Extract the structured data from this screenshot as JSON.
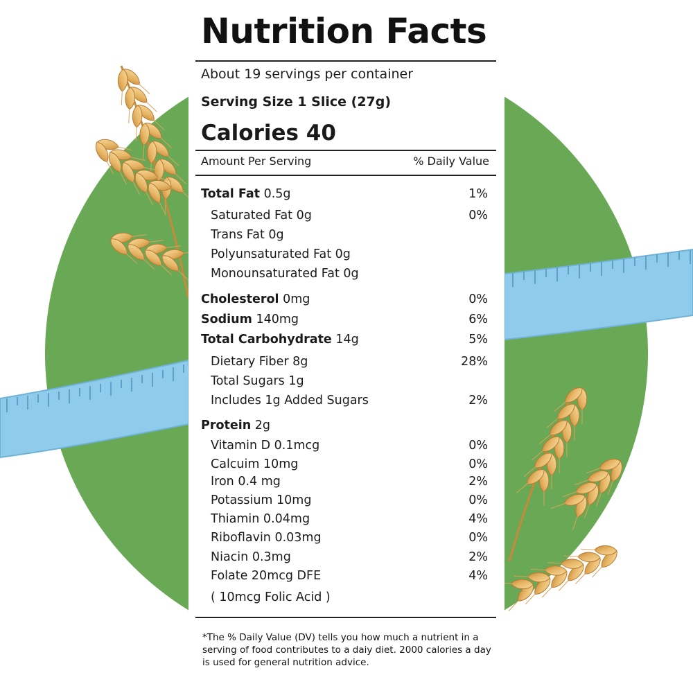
{
  "label": {
    "title": "Nutrition Facts",
    "servings": "About 19 servings per container",
    "serving_size": "Serving Size 1 Slice (27g)",
    "calories": "Calories 40",
    "header_left": "Amount Per Serving",
    "header_right": "% Daily Value"
  },
  "nutrients": [
    {
      "name": "Total Fat",
      "amount": "0.5g",
      "dv": "1%"
    },
    {
      "name": "Saturated Fat 0g",
      "dv": "0%"
    },
    {
      "name": "Trans Fat 0g",
      "dv": ""
    },
    {
      "name": "Polyunsaturated Fat 0g",
      "dv": ""
    },
    {
      "name": "Monounsaturated Fat 0g",
      "dv": ""
    },
    {
      "name": "Cholesterol",
      "amount": "0mg",
      "dv": "0%"
    },
    {
      "name": "Sodium",
      "amount": "140mg",
      "dv": "6%"
    },
    {
      "name": "Total Carbohydrate",
      "amount": "14g",
      "dv": "5%"
    },
    {
      "name": "Dietary Fiber 8g",
      "dv": "28%"
    },
    {
      "name": "Total Sugars 1g",
      "dv": ""
    },
    {
      "name": "Includes 1g Added Sugars",
      "dv": "2%"
    },
    {
      "name": "Protein",
      "amount": "2g",
      "dv": ""
    },
    {
      "name": "Vitamin D 0.1mcg",
      "dv": "0%"
    },
    {
      "name": "Calcuim 10mg",
      "dv": "0%"
    },
    {
      "name": "Iron 0.4 mg",
      "dv": "2%"
    },
    {
      "name": "Potassium 10mg",
      "dv": "0%"
    },
    {
      "name": "Thiamin  0.04mg",
      "dv": "4%"
    },
    {
      "name": "Riboflavin 0.03mg",
      "dv": "0%"
    },
    {
      "name": "Niacin 0.3mg",
      "dv": "2%"
    },
    {
      "name": "Folate 20mcg DFE",
      "dv": "4%"
    },
    {
      "name": "( 10mcg Folic Acid )",
      "dv": ""
    }
  ],
  "footnote": "*The % Daily Value (DV) tells you how much a nutrient in a serving of food contributes to a daiy diet. 2000 calories a day is used for general nutrition advice.",
  "colors": {
    "circle": "#69a855",
    "tape": "#8fcbea",
    "wheat_light": "#f0c77a",
    "wheat_dark": "#c8893a"
  }
}
